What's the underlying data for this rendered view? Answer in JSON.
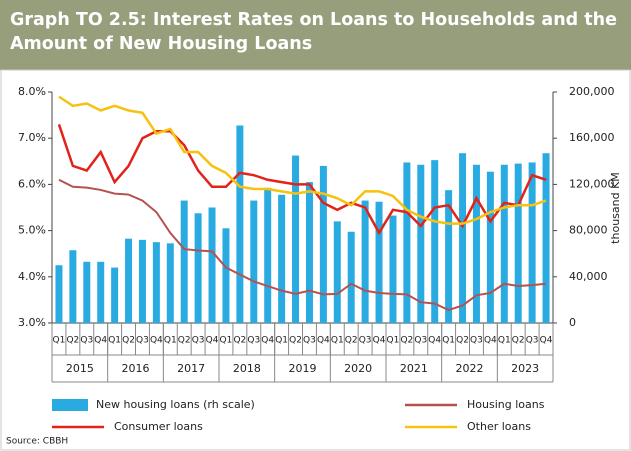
{
  "chart_data": {
    "type": "bar",
    "title": "Graph TO 2.5: Interest Rates on Loans to Households and the Amount of New Housing Loans",
    "categories": [
      "Q1",
      "Q2",
      "Q3",
      "Q4",
      "Q1",
      "Q2",
      "Q3",
      "Q4",
      "Q1",
      "Q2",
      "Q3",
      "Q4",
      "Q1",
      "Q2",
      "Q3",
      "Q4",
      "Q1",
      "Q2",
      "Q3",
      "Q4",
      "Q1",
      "Q2",
      "Q3",
      "Q4",
      "Q1",
      "Q2",
      "Q3",
      "Q4",
      "Q1",
      "Q2",
      "Q3",
      "Q4",
      "Q1",
      "Q2",
      "Q3",
      "Q4"
    ],
    "years": [
      "2015",
      "2016",
      "2017",
      "2018",
      "2019",
      "2020",
      "2021",
      "2022",
      "2023"
    ],
    "y2label": "thousand KM",
    "source": "Source: CBBH",
    "ylim": [
      3,
      8
    ],
    "yticks": [
      {
        "value": 3,
        "label": "3.0%"
      },
      {
        "value": 4,
        "label": "4.0%"
      },
      {
        "value": 5,
        "label": "5.0%"
      },
      {
        "value": 6,
        "label": "6.0%"
      },
      {
        "value": 7,
        "label": "7.0%"
      },
      {
        "value": 8,
        "label": "8.0%"
      }
    ],
    "y2lim": [
      0,
      200000
    ],
    "y2ticks": [
      0,
      {
        "value": 40000,
        "label": "40,000"
      },
      {
        "value": 80000,
        "label": "80,000"
      },
      {
        "value": 120000,
        "label": "120,000"
      },
      {
        "value": 160000,
        "label": "160,000"
      },
      {
        "value": 200000,
        "label": "200,000"
      }
    ],
    "series": [
      {
        "name": "New housing loans (rh scale)",
        "type": "bar",
        "axis": "y2",
        "color": "#29abe2",
        "values": [
          50000,
          63000,
          53000,
          53000,
          48000,
          73000,
          72000,
          70000,
          69000,
          106000,
          95000,
          100000,
          82000,
          171000,
          106000,
          117000,
          111000,
          145000,
          122000,
          136000,
          88000,
          79000,
          106000,
          105000,
          93000,
          139000,
          137000,
          141000,
          115000,
          147000,
          137000,
          131000,
          137000,
          138000,
          139000,
          147000
        ]
      },
      {
        "name": "Housing loans",
        "type": "line",
        "color": "#b5524f",
        "values": [
          6.1,
          5.95,
          5.93,
          5.88,
          5.8,
          5.78,
          5.65,
          5.4,
          4.95,
          4.6,
          4.57,
          4.55,
          4.2,
          4.05,
          3.9,
          3.8,
          3.7,
          3.63,
          3.7,
          3.62,
          3.63,
          3.85,
          3.7,
          3.65,
          3.63,
          3.62,
          3.45,
          3.42,
          3.28,
          3.38,
          3.6,
          3.65,
          3.85,
          3.8,
          3.82,
          3.85
        ]
      },
      {
        "name": "Consumer loans",
        "type": "line",
        "color": "#e2231a",
        "values": [
          7.3,
          6.4,
          6.3,
          6.7,
          6.05,
          6.4,
          7.0,
          7.15,
          7.15,
          6.85,
          6.3,
          5.95,
          5.95,
          6.25,
          6.2,
          6.1,
          6.05,
          6.0,
          6.0,
          5.6,
          5.45,
          5.6,
          5.5,
          4.95,
          5.45,
          5.4,
          5.1,
          5.5,
          5.55,
          5.1,
          5.7,
          5.2,
          5.6,
          5.55,
          6.2,
          6.1
        ]
      },
      {
        "name": "Other loans",
        "type": "line",
        "color": "#f7c10f",
        "values": [
          7.9,
          7.7,
          7.75,
          7.6,
          7.7,
          7.6,
          7.55,
          7.1,
          7.2,
          6.7,
          6.7,
          6.4,
          6.25,
          5.95,
          5.9,
          5.9,
          5.85,
          5.8,
          5.85,
          5.8,
          5.7,
          5.55,
          5.85,
          5.85,
          5.75,
          5.45,
          5.3,
          5.2,
          5.15,
          5.15,
          5.25,
          5.4,
          5.5,
          5.55,
          5.55,
          5.65
        ]
      }
    ]
  }
}
